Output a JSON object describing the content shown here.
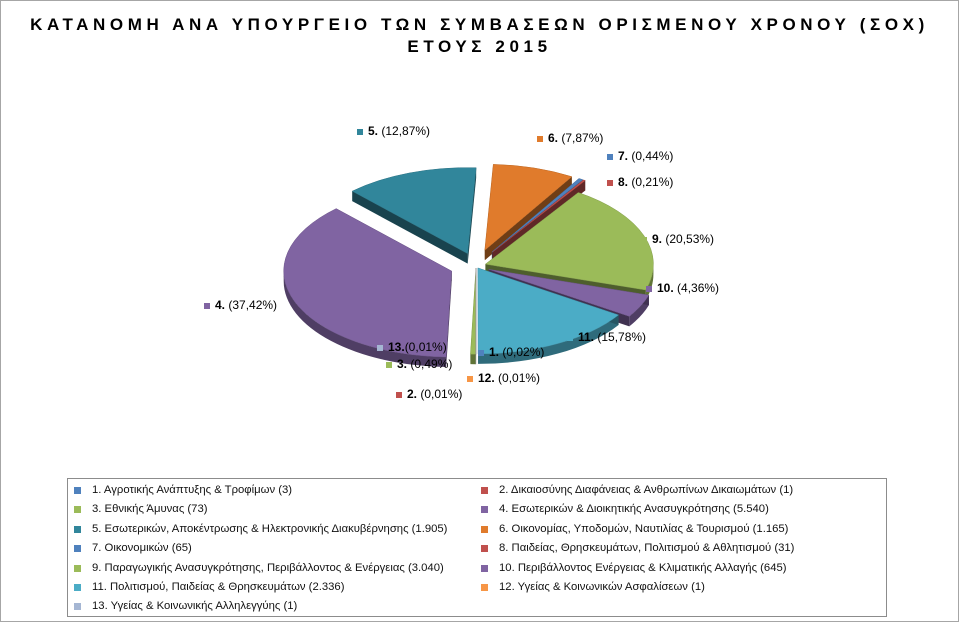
{
  "title_line1": "ΚΑΤΑΝΟΜΗ ΑΝΑ ΥΠΟΥΡΓΕΙΟ ΤΩΝ ΣΥΜΒΑΣΕΩΝ ΟΡΙΣΜΕΝΟΥ ΧΡΟΝΟΥ (ΣΟΧ)",
  "title_line2": "ΕΤΟΥΣ 2015",
  "chart_data": {
    "type": "pie",
    "style": "3d-exploded",
    "legend_position": "bottom",
    "slices": [
      {
        "id": "1",
        "name": "Αγροτικής Ανάπτυξης & Τροφίμων",
        "value": 3,
        "pct_label": "(0,02%)",
        "color": "#4f81bd",
        "legend": "1.  Αγροτικής Ανάπτυξης & Τροφίμων (3)"
      },
      {
        "id": "2",
        "name": "Δικαιοσύνης Διαφάνειας & Ανθρωπίνων Δικαιωμάτων",
        "value": 1,
        "pct_label": "(0,01%)",
        "color": "#c0504d",
        "legend": "2.  Δικαιοσύνης Διαφάνειας & Ανθρωπίνων Δικαιωμάτων (1)"
      },
      {
        "id": "3",
        "name": "Εθνικής Άμυνας",
        "value": 73,
        "pct_label": "(0,49%)",
        "color": "#9bbb59",
        "legend": "3.  Εθνικής Άμυνας (73)"
      },
      {
        "id": "4",
        "name": "Εσωτερικών & Διοικητικής Ανασυγκρότησης",
        "value": 5540,
        "pct_label": "(37,42%)",
        "color": "#8064a2",
        "legend": "4.  Εσωτερικών & Διοικητικής Ανασυγκρότησης (5.540)"
      },
      {
        "id": "5",
        "name": "Εσωτερικών, Αποκέντρωσης & Ηλεκτρονικής Διακυβέρνησης",
        "value": 1905,
        "pct_label": "(12,87%)",
        "color": "#31869b",
        "legend": "5.  Εσωτερικών, Αποκέντρωσης & Ηλεκτρονικής Διακυβέρνησης (1.905)"
      },
      {
        "id": "6",
        "name": "Οικονομίας, Υποδομών, Ναυτιλίας & Τουρισμού",
        "value": 1165,
        "pct_label": "(7,87%)",
        "color": "#e07b2c",
        "legend": "6.  Οικονομίας, Υποδομών, Ναυτιλίας & Τουρισμού (1.165)"
      },
      {
        "id": "7",
        "name": "Οικονομικών",
        "value": 65,
        "pct_label": "(0,44%)",
        "color": "#4f81bd",
        "legend": "7.  Οικονομικών (65)"
      },
      {
        "id": "8",
        "name": "Παιδείας, Θρησκευμάτων, Πολιτισμού & Αθλητισμού",
        "value": 31,
        "pct_label": "(0,21%)",
        "color": "#c0504d",
        "legend": "8.  Παιδείας, Θρησκευμάτων, Πολιτισμού & Αθλητισμού (31)"
      },
      {
        "id": "9",
        "name": "Παραγωγικής Ανασυγκρότησης, Περιβάλλοντος & Ενέργειας",
        "value": 3040,
        "pct_label": "(20,53%)",
        "color": "#9bbb59",
        "legend": "9.  Παραγωγικής Ανασυγκρότησης, Περιβάλλοντος & Ενέργειας (3.040)"
      },
      {
        "id": "10",
        "name": "Περιβάλλοντος Ενέργειας & Κλιματικής Αλλαγής",
        "value": 645,
        "pct_label": "(4,36%)",
        "color": "#8064a2",
        "legend": "10.  Περιβάλλοντος Ενέργειας & Κλιματικής Αλλαγής (645)"
      },
      {
        "id": "11",
        "name": "Πολιτισμού, Παιδείας & Θρησκευμάτων",
        "value": 2336,
        "pct_label": "(15,78%)",
        "color": "#4bacc6",
        "legend": "11.  Πολιτισμού, Παιδείας & Θρησκευμάτων (2.336)"
      },
      {
        "id": "12",
        "name": "Υγείας & Κοινωνικών Ασφαλίσεων",
        "value": 1,
        "pct_label": "(0,01%)",
        "color": "#f79646",
        "legend": "12.  Υγείας & Κοινωνικών Ασφαλίσεων (1)"
      },
      {
        "id": "13",
        "name": "Υγείας & Κοινωνικής Αλληλεγγύης",
        "value": 1,
        "pct_label": "(0,01%)",
        "color": "#a5b6d3",
        "legend": "13.  Υγείας & Κοινωνικής Αλληλεγγύης (1)"
      }
    ]
  }
}
